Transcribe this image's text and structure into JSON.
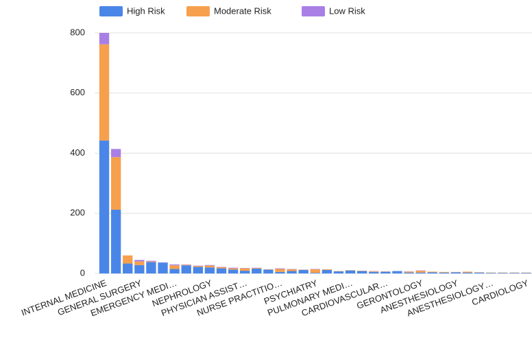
{
  "chart_data": {
    "type": "stacked_bar",
    "categories": [
      "INTERNAL MEDICINE",
      null,
      null,
      "GENERAL SURGERY",
      null,
      null,
      "EMERGENCY MEDI…",
      null,
      null,
      "NEPHROLOGY",
      null,
      null,
      "PHYSICIAN ASSIST…",
      null,
      null,
      "NURSE PRACTITIO…",
      null,
      null,
      "PSYCHIATRY",
      null,
      null,
      "PULMONARY MEDI…",
      null,
      null,
      "CARDIOVASCULAR…",
      null,
      null,
      "GERONTOLOGY",
      null,
      null,
      "ANESTHESIOLOGY",
      null,
      null,
      "ANESTHESIOLOGY…",
      null,
      null,
      "CARDIOLOGY"
    ],
    "series": [
      {
        "name": "High Risk",
        "color": "#4a86e8",
        "values": [
          442,
          212,
          33,
          28,
          38,
          36,
          15,
          27,
          22,
          20,
          17,
          13,
          9,
          16,
          13,
          5,
          8,
          12,
          2,
          12,
          7,
          10,
          8,
          5,
          6,
          8,
          3,
          3,
          4,
          3,
          4,
          3,
          3,
          2,
          2,
          2,
          2
        ]
      },
      {
        "name": "Moderate Risk",
        "color": "#f6a04d",
        "values": [
          320,
          175,
          27,
          12,
          2,
          0,
          12,
          2,
          3,
          6,
          4,
          4,
          8,
          2,
          1,
          10,
          6,
          1,
          12,
          2,
          1,
          1,
          1,
          2,
          1,
          0,
          3,
          6,
          2,
          2,
          1,
          3,
          1,
          1,
          1,
          1,
          1
        ]
      },
      {
        "name": "Low Risk",
        "color": "#a97fe6",
        "values": [
          38,
          27,
          0,
          5,
          2,
          1,
          3,
          1,
          1,
          2,
          1,
          2,
          1,
          1,
          0,
          2,
          1,
          0,
          1,
          0,
          0,
          0,
          0,
          1,
          0,
          0,
          1,
          1,
          0,
          0,
          0,
          0,
          0,
          0,
          0,
          0,
          0
        ]
      }
    ],
    "ylim": [
      0,
      800
    ],
    "yticks": [
      0,
      200,
      400,
      600,
      800
    ],
    "grid": true,
    "legend": "top"
  }
}
